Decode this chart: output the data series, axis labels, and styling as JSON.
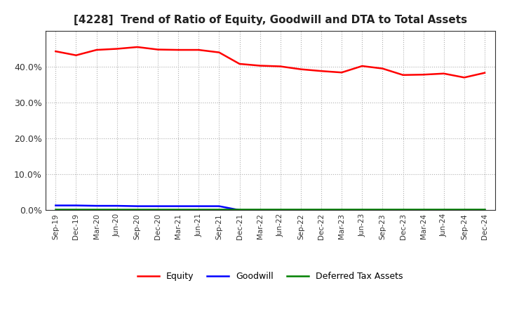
{
  "title": "[4228]  Trend of Ratio of Equity, Goodwill and DTA to Total Assets",
  "x_labels": [
    "Sep-19",
    "Dec-19",
    "Mar-20",
    "Jun-20",
    "Sep-20",
    "Dec-20",
    "Mar-21",
    "Jun-21",
    "Sep-21",
    "Dec-21",
    "Mar-22",
    "Jun-22",
    "Sep-22",
    "Dec-22",
    "Mar-23",
    "Jun-23",
    "Sep-23",
    "Dec-23",
    "Mar-24",
    "Jun-24",
    "Sep-24",
    "Dec-24"
  ],
  "equity": [
    0.443,
    0.432,
    0.447,
    0.45,
    0.455,
    0.448,
    0.447,
    0.447,
    0.44,
    0.408,
    0.403,
    0.401,
    0.393,
    0.388,
    0.384,
    0.402,
    0.395,
    0.377,
    0.378,
    0.381,
    0.37,
    0.383
  ],
  "goodwill": [
    0.013,
    0.013,
    0.012,
    0.012,
    0.011,
    0.011,
    0.011,
    0.011,
    0.011,
    0.0,
    0.0,
    0.0,
    0.0,
    0.0,
    0.0,
    0.0,
    0.0,
    0.0,
    0.0,
    0.0,
    0.0,
    0.0
  ],
  "dta": [
    0.003,
    0.003,
    0.003,
    0.003,
    0.003,
    0.003,
    0.003,
    0.003,
    0.003,
    0.003,
    0.003,
    0.003,
    0.003,
    0.003,
    0.003,
    0.003,
    0.003,
    0.003,
    0.003,
    0.003,
    0.003,
    0.003
  ],
  "equity_color": "#ff0000",
  "goodwill_color": "#0000ff",
  "dta_color": "#008000",
  "ylim": [
    0.0,
    0.5
  ],
  "yticks": [
    0.0,
    0.1,
    0.2,
    0.3,
    0.4
  ],
  "background_color": "#ffffff",
  "plot_bg_color": "#ffffff",
  "grid_color": "#b0b0b0",
  "title_fontsize": 11,
  "legend_labels": [
    "Equity",
    "Goodwill",
    "Deferred Tax Assets"
  ]
}
